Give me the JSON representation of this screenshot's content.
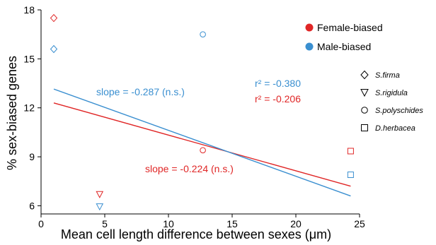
{
  "chart_data": {
    "type": "scatter",
    "xlabel": "Mean cell length difference between sexes (μm)",
    "ylabel": "% sex-biased genes",
    "xlim": [
      0,
      25
    ],
    "ylim": [
      5.5,
      18
    ],
    "x_ticks": [
      0,
      5,
      10,
      15,
      20,
      25
    ],
    "y_ticks": [
      6,
      9,
      12,
      15,
      18
    ],
    "grid": false,
    "legend_position": "top-right",
    "series": [
      {
        "name": "Female-biased",
        "color": "#e02626",
        "points": [
          {
            "species": "S.firma",
            "x": 1.0,
            "y": 17.5
          },
          {
            "species": "S.rigidula",
            "x": 4.6,
            "y": 6.7
          },
          {
            "species": "S.polyschides",
            "x": 12.7,
            "y": 9.4
          },
          {
            "species": "D.herbacea",
            "x": 24.3,
            "y": 9.35
          }
        ],
        "fit": {
          "x1": 1.0,
          "y1": 12.3,
          "x2": 24.3,
          "y2": 7.2
        },
        "slope_label": "slope = -0.224 (n.s.)",
        "r2_label": "r² = -0.206"
      },
      {
        "name": "Male-biased",
        "color": "#3a8fd0",
        "points": [
          {
            "species": "S.firma",
            "x": 1.0,
            "y": 15.6
          },
          {
            "species": "S.rigidula",
            "x": 4.6,
            "y": 5.95
          },
          {
            "species": "S.polyschides",
            "x": 12.7,
            "y": 16.5
          },
          {
            "species": "D.herbacea",
            "x": 24.3,
            "y": 7.9
          }
        ],
        "fit": {
          "x1": 1.0,
          "y1": 13.15,
          "x2": 24.3,
          "y2": 6.6
        },
        "slope_label": "slope = -0.287 (n.s.)",
        "r2_label": "r² = -0.380"
      }
    ],
    "shape_legend": [
      {
        "species": "S.firma",
        "shape": "diamond"
      },
      {
        "species": "S.rigidula",
        "shape": "triangle-down"
      },
      {
        "species": "S.polyschides",
        "shape": "circle"
      },
      {
        "species": "D.herbacea",
        "shape": "square"
      }
    ]
  }
}
